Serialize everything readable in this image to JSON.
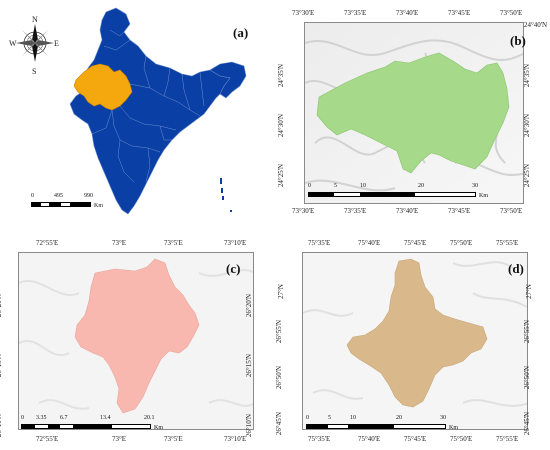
{
  "panels": {
    "a": {
      "letter": "(a)",
      "compass": {
        "n": "N",
        "s": "S",
        "e": "E",
        "w": "W"
      },
      "scale": {
        "ticks": [
          "0",
          "495",
          "990"
        ],
        "unit": "Km"
      },
      "colors": {
        "country": "#0a3fa6",
        "highlight": "#f5a70e",
        "border": "#6f8fcf"
      }
    },
    "b": {
      "letter": "(b)",
      "top_ticks": [
        "73°30'E",
        "73°35'E",
        "73°40'E",
        "73°45'E",
        "73°50'E"
      ],
      "bottom_ticks": [
        "73°30'E",
        "73°35'E",
        "73°40'E",
        "73°45'E",
        "73°50'E"
      ],
      "lat_ticks": [
        "24°40'N",
        "24°35'N",
        "24°30'N",
        "24°25'N"
      ],
      "scale": {
        "ticks": [
          "0",
          "5",
          "10",
          "20",
          "30"
        ],
        "unit": "Km"
      },
      "colors": {
        "region": "#a6d98a"
      }
    },
    "c": {
      "letter": "(c)",
      "top_ticks": [
        "72°55'E",
        "73°E",
        "73°5'E",
        "73°10'E"
      ],
      "bottom_ticks": [
        "72°55'E",
        "73°E",
        "73°5'E",
        "73°10'E"
      ],
      "lat_ticks": [
        "26°20'N",
        "26°15'N",
        "26°10'N"
      ],
      "scale": {
        "ticks": [
          "0",
          "3.35",
          "6.7",
          "13.4",
          "20.1"
        ],
        "unit": "Km"
      },
      "colors": {
        "region": "#f8b8b0"
      }
    },
    "d": {
      "letter": "(d)",
      "top_ticks": [
        "75°35'E",
        "75°40'E",
        "75°45'E",
        "75°50'E",
        "75°55'E"
      ],
      "bottom_ticks": [
        "75°35'E",
        "75°40'E",
        "75°45'E",
        "75°50'E",
        "75°55'E"
      ],
      "lat_ticks": [
        "27°N",
        "26°55'N",
        "26°50'N",
        "26°45'N"
      ],
      "scale": {
        "ticks": [
          "0",
          "5",
          "10",
          "20",
          "30"
        ],
        "unit": "Km"
      },
      "colors": {
        "region": "#d9b98c"
      }
    }
  }
}
